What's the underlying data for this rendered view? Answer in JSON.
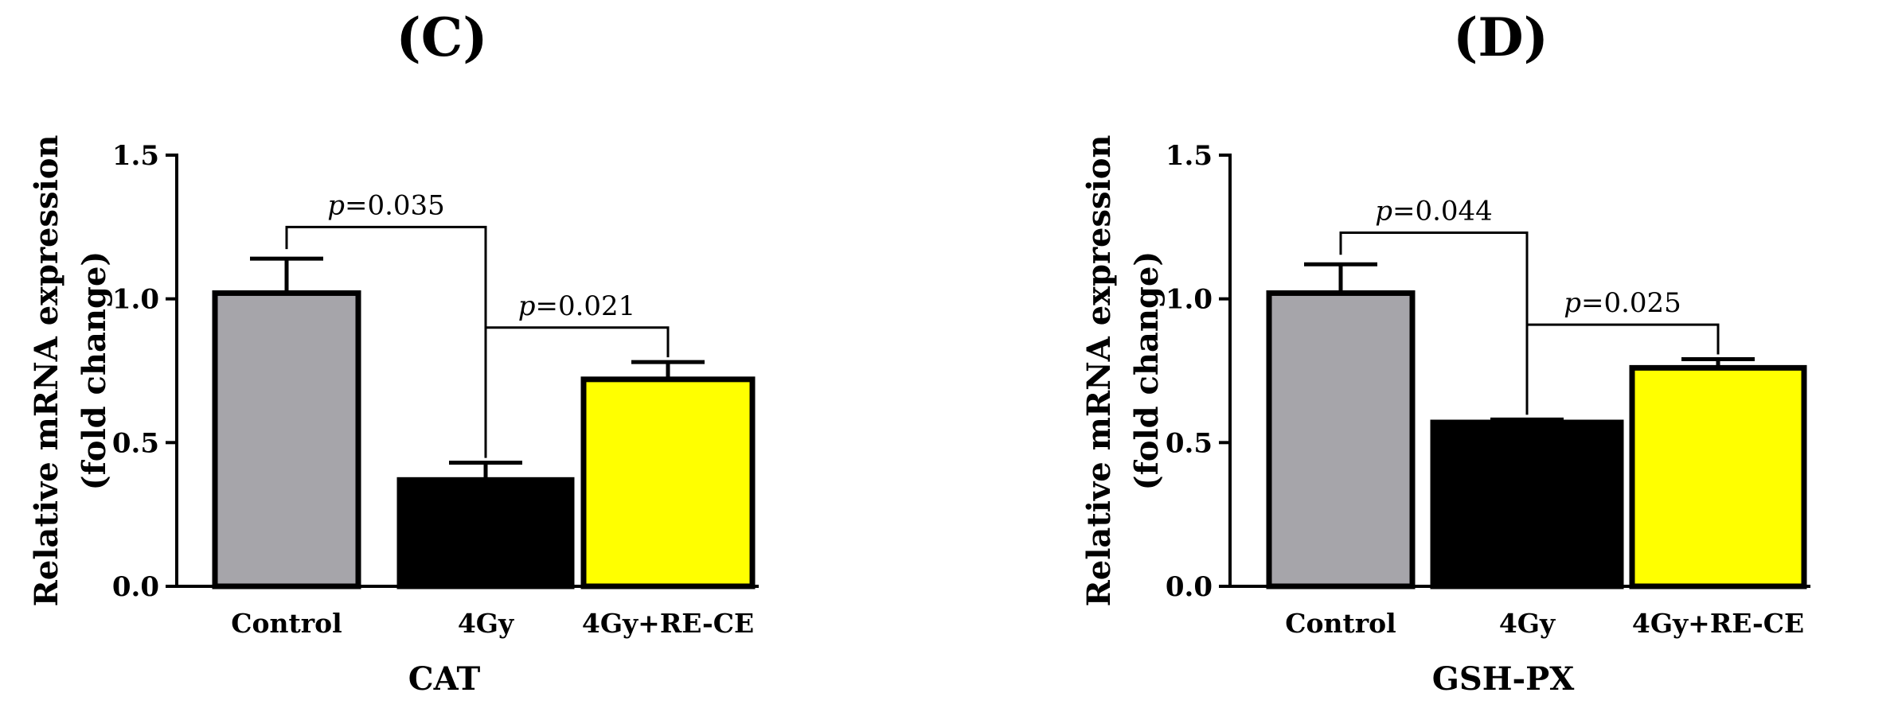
{
  "chart_data": [
    {
      "panel_label": "(C)",
      "type": "bar",
      "categories": [
        "Control",
        "4Gy",
        "4Gy+RE-CE"
      ],
      "values": [
        1.02,
        0.37,
        0.72
      ],
      "errors": [
        0.12,
        0.06,
        0.06
      ],
      "colors": [
        "#a6a5aa",
        "#000000",
        "#ffff00"
      ],
      "ylabel": [
        "Relative mRNA expression",
        "(fold change)"
      ],
      "xlabel": "CAT",
      "ylim": [
        0,
        1.5
      ],
      "yticks": [
        "0.0",
        "0.5",
        "1.0",
        "1.5"
      ],
      "significance": [
        {
          "from": 0,
          "to": 1,
          "y": 1.25,
          "p": "p",
          "value": "=0.035"
        },
        {
          "from": 1,
          "to": 2,
          "y": 0.9,
          "p": "p",
          "value": "=0.021"
        }
      ]
    },
    {
      "panel_label": "(D)",
      "type": "bar",
      "categories": [
        "Control",
        "4Gy",
        "4Gy+RE-CE"
      ],
      "values": [
        1.02,
        0.57,
        0.76
      ],
      "errors": [
        0.1,
        0.01,
        0.03
      ],
      "colors": [
        "#a6a5aa",
        "#000000",
        "#ffff00"
      ],
      "ylabel": [
        "Relative mRNA expression",
        "(fold change)"
      ],
      "xlabel": "GSH-PX",
      "ylim": [
        0,
        1.5
      ],
      "yticks": [
        "0.0",
        "0.5",
        "1.0",
        "1.5"
      ],
      "significance": [
        {
          "from": 0,
          "to": 1,
          "y": 1.23,
          "p": "p",
          "value": "=0.044"
        },
        {
          "from": 1,
          "to": 2,
          "y": 0.91,
          "p": "p",
          "value": "=0.025"
        }
      ]
    }
  ]
}
